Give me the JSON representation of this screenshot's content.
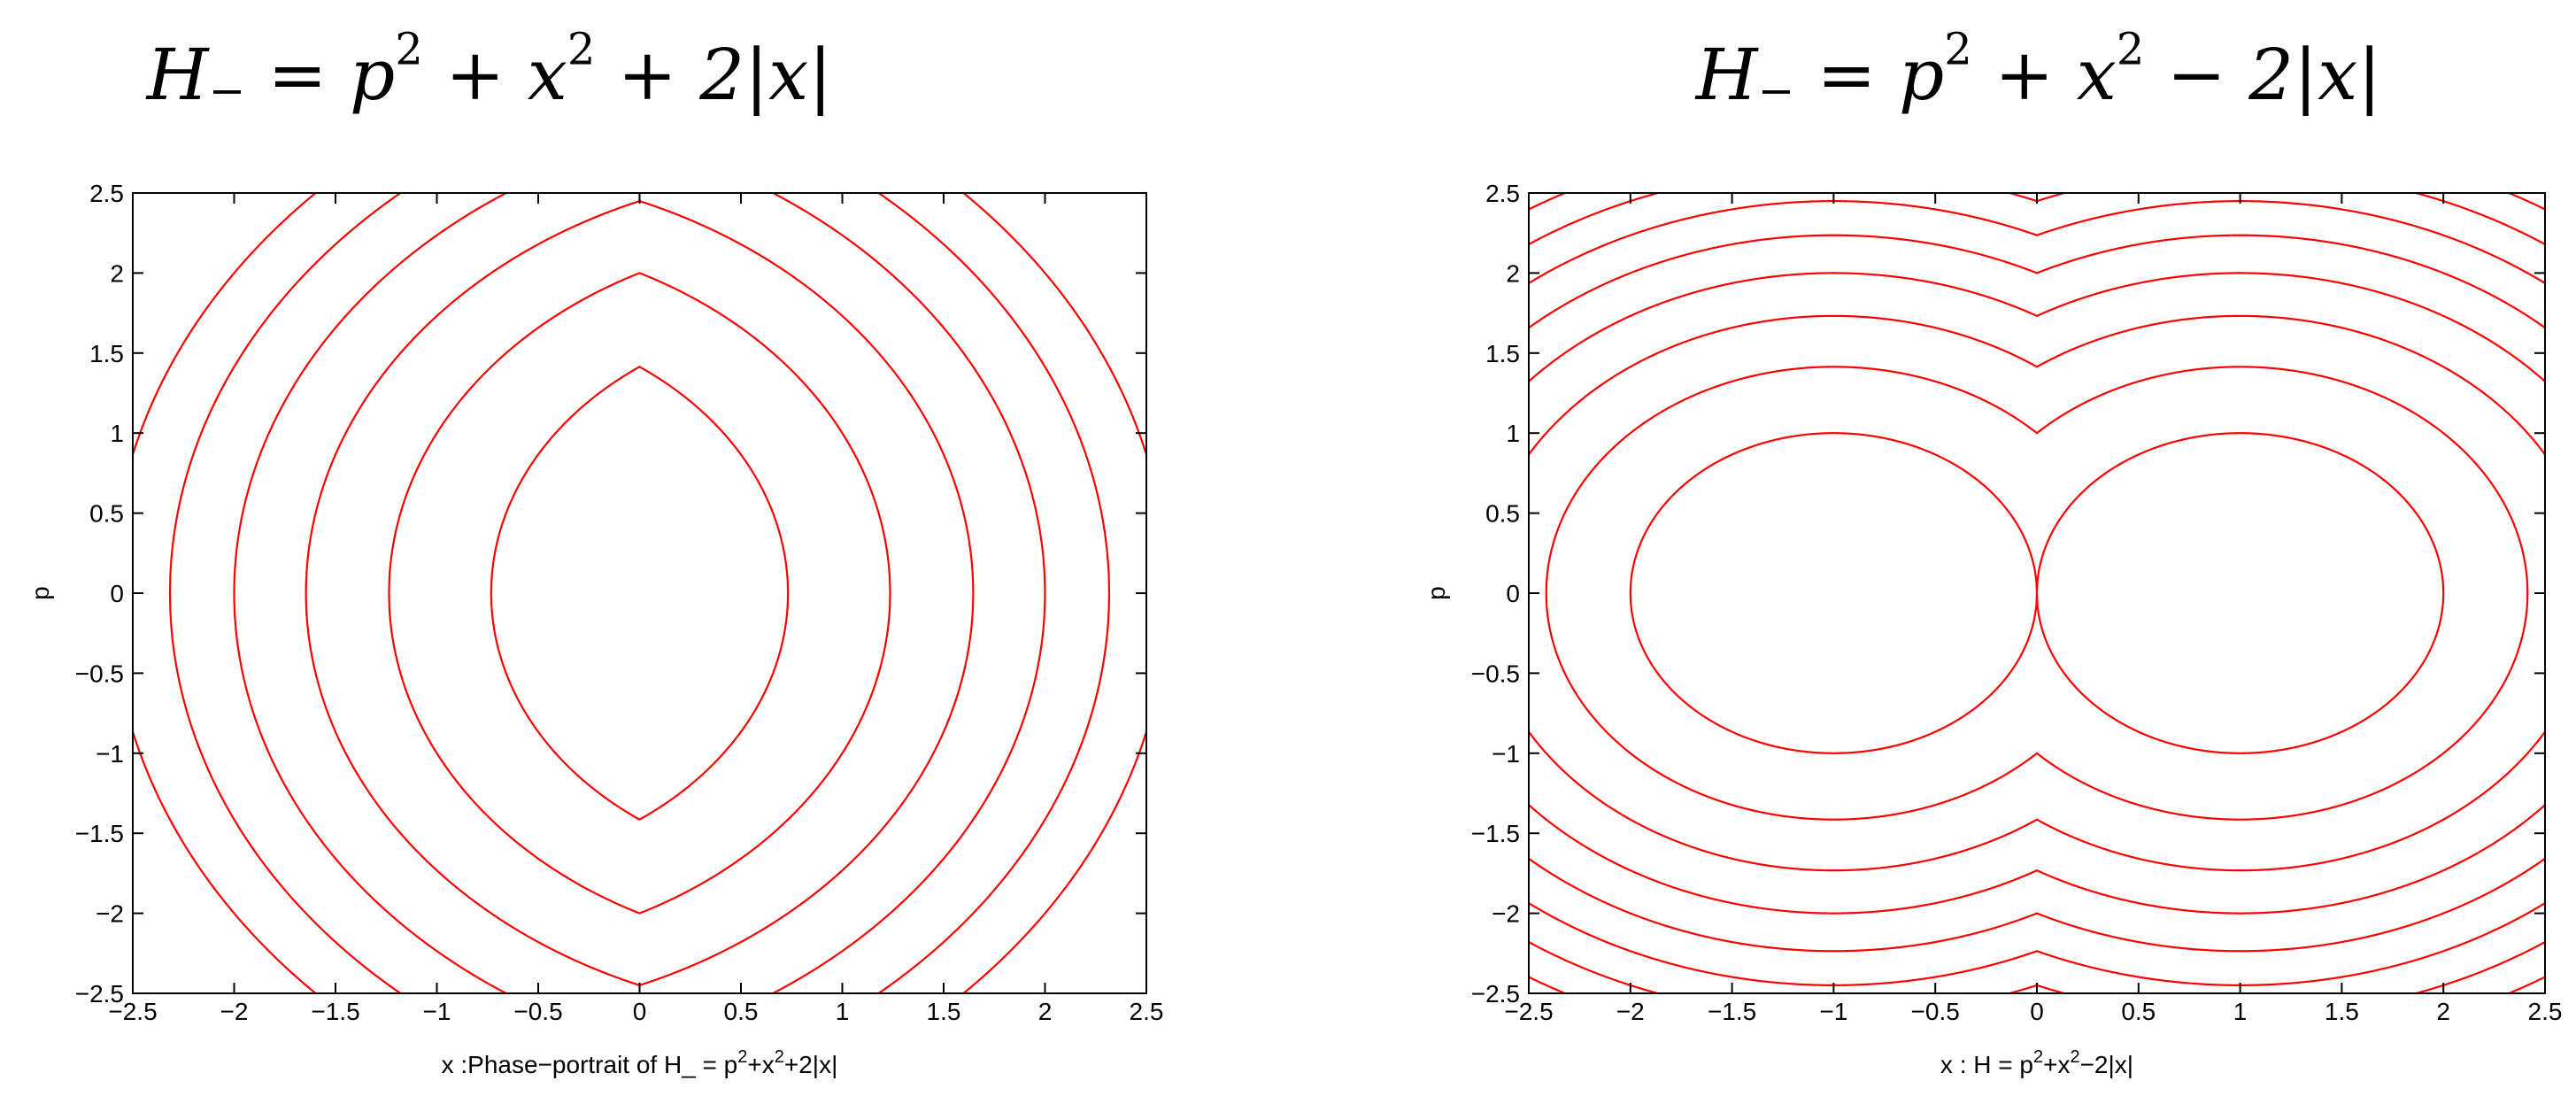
{
  "titles": {
    "left": {
      "lhs": "H",
      "lhs_sub": "−",
      "eq": " = p",
      "sup1": "2",
      "mid": " + x",
      "sup2": "2",
      "tail": " + 2|x|"
    },
    "right": {
      "lhs": "H",
      "lhs_sub": "−",
      "eq": " = p",
      "sup1": "2",
      "mid": " + x",
      "sup2": "2",
      "tail": " − 2|x|"
    }
  },
  "colors": {
    "contour": "#ff0000",
    "axes": "#000000",
    "background": "#ffffff"
  },
  "chart_data": [
    {
      "type": "line",
      "subtype": "contour",
      "function": "p^2 + x^2 + 2|x|",
      "contour_levels": [
        2,
        4,
        6,
        8,
        10,
        12
      ],
      "xlim": [
        -2.5,
        2.5
      ],
      "ylim": [
        -2.5,
        2.5
      ],
      "xticks": [
        -2.5,
        -2,
        -1.5,
        -1,
        -0.5,
        0,
        0.5,
        1,
        1.5,
        2,
        2.5
      ],
      "yticks": [
        -2.5,
        -2,
        -1.5,
        -1,
        -0.5,
        0,
        0.5,
        1,
        1.5,
        2,
        2.5
      ],
      "xlabel_prefix": "x :Phase−portrait of  H_ = p",
      "xlabel_sup1": "2",
      "xlabel_mid": "+x",
      "xlabel_sup2": "2",
      "xlabel_tail": "+2|x|",
      "ylabel": "p",
      "grid": false,
      "legend": "none"
    },
    {
      "type": "line",
      "subtype": "contour",
      "function": "p^2 + x^2 - 2|x|",
      "contour_levels": [
        0,
        1,
        2,
        3,
        4,
        5,
        6,
        7
      ],
      "xlim": [
        -2.5,
        2.5
      ],
      "ylim": [
        -2.5,
        2.5
      ],
      "xticks": [
        -2.5,
        -2,
        -1.5,
        -1,
        -0.5,
        0,
        0.5,
        1,
        1.5,
        2,
        2.5
      ],
      "yticks": [
        -2.5,
        -2,
        -1.5,
        -1,
        -0.5,
        0,
        0.5,
        1,
        1.5,
        2,
        2.5
      ],
      "xlabel_prefix": "x : H = p",
      "xlabel_sup1": "2",
      "xlabel_mid": "+x",
      "xlabel_sup2": "2",
      "xlabel_tail": "−2|x|",
      "ylabel": "p",
      "grid": false,
      "legend": "none"
    }
  ]
}
